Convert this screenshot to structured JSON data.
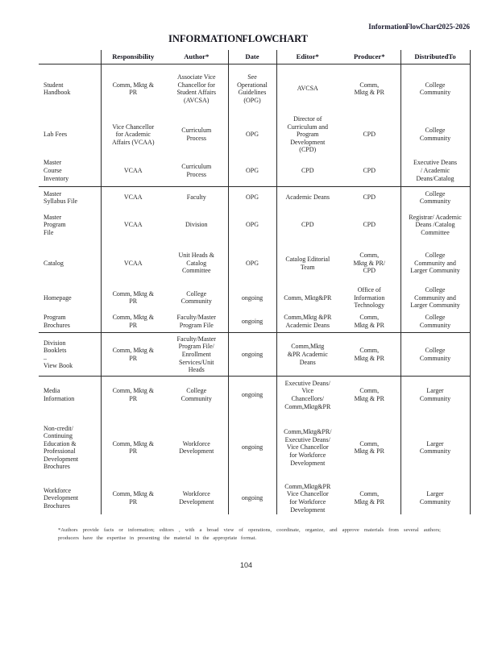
{
  "page": {
    "header_right": "Information Flow Chart 2025-2026",
    "title": "INFORMATION FLOW CHART",
    "footnote": "*Authors provide facts or information; editors , with a broad view of operations, coordinate, organize, and approve materials from several authors; producers have the expertise in presenting the material in the appropriate format.",
    "page_number": "104"
  },
  "table": {
    "columns": [
      "",
      "Responsibility",
      "Author*",
      "Date",
      "Editor*",
      "Producer*",
      "Distributed To"
    ],
    "rows": [
      {
        "label": "Student\nHandbook",
        "responsibility": "Comm, Mktg &\nPR",
        "author": "Associate Vice\nChancellor for\nStudent Affairs\n(AVCSA)",
        "date": "See\nOperational\nGuidelines\n(OPG)",
        "editor": "AVCSA",
        "producer": "Comm,\nMktg & PR",
        "distributed_to": "College\nCommunity"
      },
      {
        "label": "Lab Fees",
        "responsibility": "Vice Chancellor\nfor Academic\nAffairs (VCAA)",
        "author": "Curriculum\nProcess",
        "date": "OPG",
        "editor": "Director of\nCurriculum and\nProgram\nDevelopment\n(CPD)",
        "producer": "CPD",
        "distributed_to": "College\nCommunity"
      },
      {
        "label": "Master\nCourse\nInventory",
        "responsibility": "VCAA",
        "author": "Curriculum\nProcess",
        "date": "OPG",
        "editor": "CPD",
        "producer": "CPD",
        "distributed_to": "Executive Deans\n/ Academic\nDeans/Catalog"
      },
      {
        "label": "Master\nSyllabus File",
        "responsibility": "VCAA",
        "author": "Faculty",
        "date": "OPG",
        "editor": "Academic Deans",
        "producer": "CPD",
        "distributed_to": "College\nCommunity"
      },
      {
        "label": "Master\nProgram\nFile",
        "responsibility": "VCAA",
        "author": "Division",
        "date": "OPG",
        "editor": "CPD",
        "producer": "CPD",
        "distributed_to": "Registrar/ Academic\nDeans /Catalog\nCommittee"
      },
      {
        "label": "Catalog",
        "responsibility": "VCAA",
        "author": "Unit Heads &\nCatalog\nCommittee",
        "date": "OPG",
        "editor": "Catalog Editorial\nTeam",
        "producer": "Comm,\nMktg & PR/\nCPD",
        "distributed_to": "College\nCommunity and\nLarger Community"
      },
      {
        "label": "Homepage",
        "responsibility": "Comm, Mktg &\nPR",
        "author": "College\nCommunity",
        "date": "ongoing",
        "editor": "Comm, Mktg&PR",
        "producer": "Office of\nInformation\nTechnology",
        "distributed_to": "College\nCommunity and\nLarger Community"
      },
      {
        "label": "Program\nBrochures",
        "responsibility": "Comm, Mktg &\nPR",
        "author": "Faculty/Master\nProgram File",
        "date": "ongoing",
        "editor": "Comm,Mktg &PR\nAcademic Deans",
        "producer": "Comm,\nMktg & PR",
        "distributed_to": "College\nCommunity"
      },
      {
        "label": "Division\nBooklets\n–\nView Book",
        "responsibility": "Comm, Mktg &\nPR",
        "author": "Faculty/Master\nProgram File/\nEnrollment\nServices/Unit\nHeads",
        "date": "ongoing",
        "editor": "Comm,Mktg\n&PR Academic\nDeans",
        "producer": "Comm,\nMktg & PR",
        "distributed_to": "College\nCommunity"
      },
      {
        "label": "Media\nInformation",
        "responsibility": "Comm, Mktg &\nPR",
        "author": "College\nCommunity",
        "date": "ongoing",
        "editor": "Executive Deans/\nVice\nChancellors/\nComm,Mktg&PR",
        "producer": "Comm,\nMktg & PR",
        "distributed_to": "Larger\nCommunity"
      },
      {
        "label": "Non-credit/\nContinuing\nEducation &\nProfessional\nDevelopment\nBrochures",
        "responsibility": "Comm, Mktg &\nPR",
        "author": "Workforce\nDevelopment",
        "date": "ongoing",
        "editor": "Comm,Mktg&PR/\nExecutive Deans/\nVice Chancellor\nfor Workforce\nDevelopment",
        "producer": "Comm,\nMktg & PR",
        "distributed_to": "Larger\nCommunity"
      },
      {
        "label": "Workforce\nDevelopment\nBrochures",
        "responsibility": "Comm, Mktg &\nPR",
        "author": "Workforce\nDevelopment",
        "date": "ongoing",
        "editor": "Comm,Mktg&PR\nVice Chancellor\nfor Workforce\nDevelopment",
        "producer": "Comm,\nMktg & PR",
        "distributed_to": "Larger\nCommunity"
      }
    ]
  }
}
